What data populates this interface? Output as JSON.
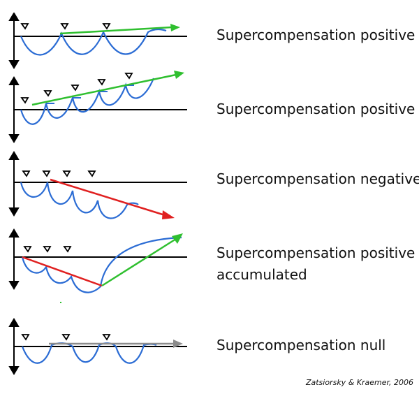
{
  "panels": [
    {
      "label_lines": [
        "Supercompensation positive"
      ]
    },
    {
      "label_lines": [
        "Supercompensation positive"
      ]
    },
    {
      "label_lines": [
        "Supercompensation negative"
      ]
    },
    {
      "label_lines": [
        "Supercompensation positive",
        "accumulated"
      ]
    },
    {
      "label_lines": [
        "Supercompensation null"
      ]
    }
  ],
  "citation": "Zatsiorsky & Kraemer, 2006",
  "colors": {
    "curve": "#2b6cd4",
    "positive_trend": "#2fbf2f",
    "negative_trend": "#e02020",
    "null_trend": "#8c8c8c",
    "axis": "#000000"
  },
  "icons": [
    "arrowhead-icon",
    "training-stimulus-marker-icon"
  ]
}
